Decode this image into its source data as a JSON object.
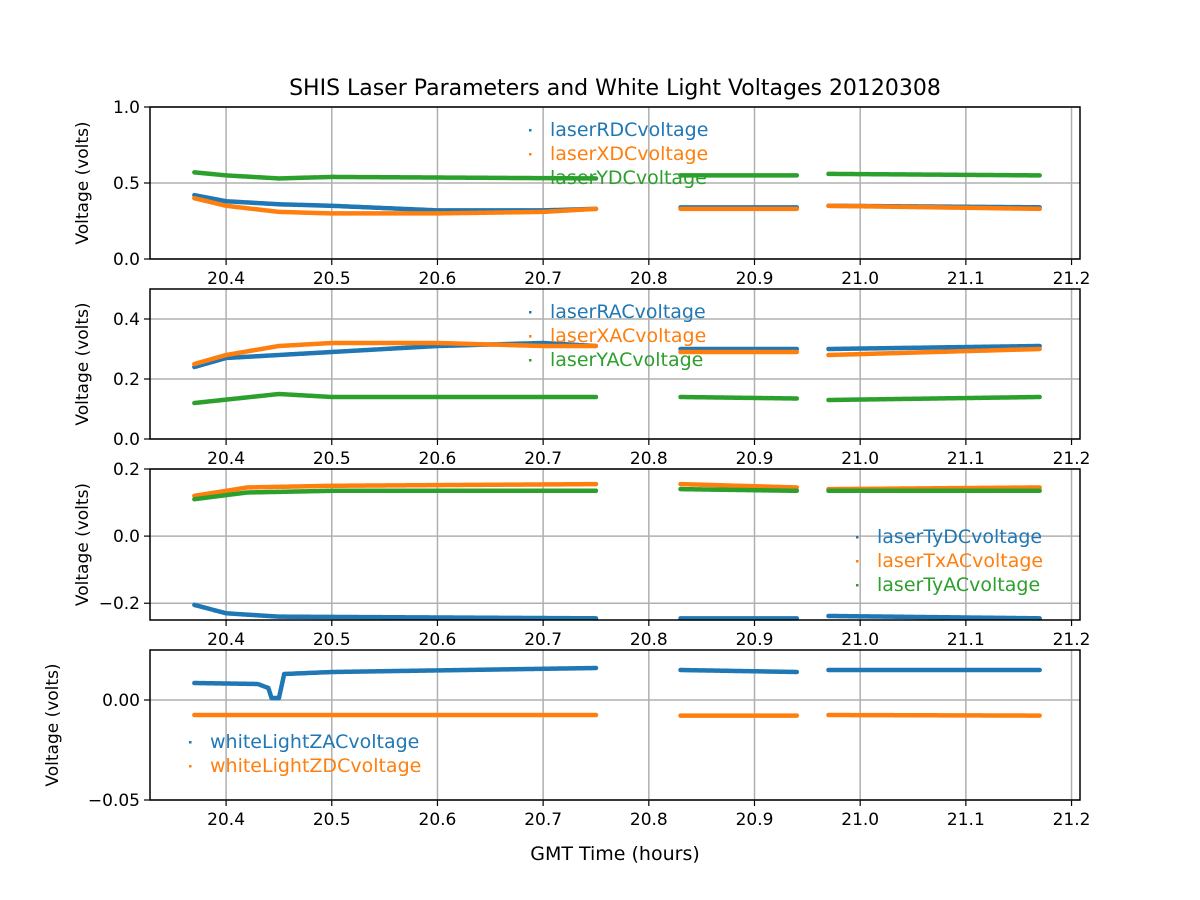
{
  "chart_data": {
    "type": "scatter",
    "title": "SHIS Laser Parameters and White Light Voltages 20120308",
    "xlabel": "GMT Time (hours)",
    "xlim": [
      20.328,
      21.208
    ],
    "xticks": [
      20.4,
      20.5,
      20.6,
      20.7,
      20.8,
      20.9,
      21.0,
      21.1,
      21.2
    ],
    "xtick_labels": [
      "20.4",
      "20.5",
      "20.6",
      "20.7",
      "20.8",
      "20.9",
      "21.0",
      "21.1",
      "21.2"
    ],
    "grid": true,
    "panels": [
      {
        "ylabel": "Voltage (volts)",
        "ylim": [
          0,
          1.0
        ],
        "yticks": [
          0,
          0.5,
          1.0
        ],
        "ytick_labels": [
          "0.0",
          "0.5",
          "1.0"
        ],
        "legend": "upper center",
        "series": [
          {
            "name": "laserRDCvoltage",
            "color": "#1f77b4",
            "segments": [
              [
                [
                  20.37,
                  0.42
                ],
                [
                  20.4,
                  0.38
                ],
                [
                  20.45,
                  0.36
                ],
                [
                  20.5,
                  0.35
                ],
                [
                  20.6,
                  0.32
                ],
                [
                  20.7,
                  0.32
                ],
                [
                  20.75,
                  0.33
                ]
              ],
              [
                [
                  20.83,
                  0.34
                ],
                [
                  20.94,
                  0.34
                ]
              ],
              [
                [
                  20.97,
                  0.35
                ],
                [
                  21.17,
                  0.34
                ]
              ]
            ]
          },
          {
            "name": "laserXDCvoltage",
            "color": "#ff7f0e",
            "segments": [
              [
                [
                  20.37,
                  0.4
                ],
                [
                  20.4,
                  0.35
                ],
                [
                  20.45,
                  0.31
                ],
                [
                  20.5,
                  0.3
                ],
                [
                  20.6,
                  0.3
                ],
                [
                  20.7,
                  0.31
                ],
                [
                  20.75,
                  0.33
                ]
              ],
              [
                [
                  20.83,
                  0.33
                ],
                [
                  20.94,
                  0.33
                ]
              ],
              [
                [
                  20.97,
                  0.35
                ],
                [
                  21.17,
                  0.33
                ]
              ]
            ]
          },
          {
            "name": "laserYDCvoltage",
            "color": "#2ca02c",
            "segments": [
              [
                [
                  20.37,
                  0.57
                ],
                [
                  20.4,
                  0.55
                ],
                [
                  20.45,
                  0.53
                ],
                [
                  20.5,
                  0.54
                ],
                [
                  20.75,
                  0.53
                ]
              ],
              [
                [
                  20.83,
                  0.55
                ],
                [
                  20.94,
                  0.55
                ]
              ],
              [
                [
                  20.97,
                  0.56
                ],
                [
                  21.17,
                  0.55
                ]
              ]
            ]
          }
        ]
      },
      {
        "ylabel": "Voltage (volts)",
        "ylim": [
          0,
          0.5
        ],
        "yticks": [
          0,
          0.2,
          0.4
        ],
        "ytick_labels": [
          "0.0",
          "0.2",
          "0.4"
        ],
        "legend": "upper center",
        "series": [
          {
            "name": "laserRACvoltage",
            "color": "#1f77b4",
            "segments": [
              [
                [
                  20.37,
                  0.24
                ],
                [
                  20.4,
                  0.27
                ],
                [
                  20.5,
                  0.29
                ],
                [
                  20.6,
                  0.31
                ],
                [
                  20.7,
                  0.32
                ],
                [
                  20.75,
                  0.31
                ]
              ],
              [
                [
                  20.83,
                  0.3
                ],
                [
                  20.94,
                  0.3
                ]
              ],
              [
                [
                  20.97,
                  0.3
                ],
                [
                  21.17,
                  0.31
                ]
              ]
            ]
          },
          {
            "name": "laserXACvoltage",
            "color": "#ff7f0e",
            "segments": [
              [
                [
                  20.37,
                  0.25
                ],
                [
                  20.4,
                  0.28
                ],
                [
                  20.45,
                  0.31
                ],
                [
                  20.5,
                  0.32
                ],
                [
                  20.6,
                  0.32
                ],
                [
                  20.7,
                  0.31
                ],
                [
                  20.75,
                  0.31
                ]
              ],
              [
                [
                  20.83,
                  0.29
                ],
                [
                  20.94,
                  0.29
                ]
              ],
              [
                [
                  20.97,
                  0.28
                ],
                [
                  21.17,
                  0.3
                ]
              ]
            ]
          },
          {
            "name": "laserYACvoltage",
            "color": "#2ca02c",
            "segments": [
              [
                [
                  20.37,
                  0.12
                ],
                [
                  20.45,
                  0.15
                ],
                [
                  20.5,
                  0.14
                ],
                [
                  20.75,
                  0.14
                ]
              ],
              [
                [
                  20.83,
                  0.14
                ],
                [
                  20.94,
                  0.135
                ]
              ],
              [
                [
                  20.97,
                  0.13
                ],
                [
                  21.17,
                  0.14
                ]
              ]
            ]
          }
        ]
      },
      {
        "ylabel": "Voltage (volts)",
        "ylim": [
          -0.25,
          0.2
        ],
        "yticks": [
          -0.2,
          0,
          0.2
        ],
        "ytick_labels": [
          "−0.2",
          "0.0",
          "0.2"
        ],
        "legend": "center right",
        "series": [
          {
            "name": "laserTyDCvoltage",
            "color": "#1f77b4",
            "segments": [
              [
                [
                  20.37,
                  -0.205
                ],
                [
                  20.4,
                  -0.23
                ],
                [
                  20.45,
                  -0.24
                ],
                [
                  20.75,
                  -0.245
                ]
              ],
              [
                [
                  20.83,
                  -0.245
                ],
                [
                  20.94,
                  -0.245
                ]
              ],
              [
                [
                  20.97,
                  -0.238
                ],
                [
                  21.17,
                  -0.245
                ]
              ]
            ]
          },
          {
            "name": "laserTxACvoltage",
            "color": "#ff7f0e",
            "segments": [
              [
                [
                  20.37,
                  0.12
                ],
                [
                  20.42,
                  0.145
                ],
                [
                  20.5,
                  0.15
                ],
                [
                  20.75,
                  0.155
                ]
              ],
              [
                [
                  20.83,
                  0.155
                ],
                [
                  20.94,
                  0.145
                ]
              ],
              [
                [
                  20.97,
                  0.14
                ],
                [
                  21.17,
                  0.145
                ]
              ]
            ]
          },
          {
            "name": "laserTyACvoltage",
            "color": "#2ca02c",
            "segments": [
              [
                [
                  20.37,
                  0.11
                ],
                [
                  20.42,
                  0.13
                ],
                [
                  20.5,
                  0.135
                ],
                [
                  20.75,
                  0.135
                ]
              ],
              [
                [
                  20.83,
                  0.14
                ],
                [
                  20.94,
                  0.135
                ]
              ],
              [
                [
                  20.97,
                  0.135
                ],
                [
                  21.17,
                  0.135
                ]
              ]
            ]
          }
        ]
      },
      {
        "ylabel": "Voltage (volts)",
        "ylim": [
          -0.05,
          0.025
        ],
        "yticks": [
          -0.05,
          0.0
        ],
        "ytick_labels": [
          "−0.05",
          "0.00"
        ],
        "legend": "lower left",
        "series": [
          {
            "name": "whiteLightZACvoltage",
            "color": "#1f77b4",
            "segments": [
              [
                [
                  20.37,
                  0.0085
                ],
                [
                  20.43,
                  0.008
                ],
                [
                  20.44,
                  0.006
                ],
                [
                  20.443,
                  0.001
                ],
                [
                  20.45,
                  0.001
                ],
                [
                  20.455,
                  0.013
                ],
                [
                  20.5,
                  0.014
                ],
                [
                  20.75,
                  0.016
                ]
              ],
              [
                [
                  20.83,
                  0.015
                ],
                [
                  20.94,
                  0.014
                ]
              ],
              [
                [
                  20.97,
                  0.015
                ],
                [
                  21.17,
                  0.015
                ]
              ]
            ]
          },
          {
            "name": "whiteLightZDCvoltage",
            "color": "#ff7f0e",
            "segments": [
              [
                [
                  20.37,
                  -0.0075
                ],
                [
                  20.75,
                  -0.0075
                ]
              ],
              [
                [
                  20.83,
                  -0.0078
                ],
                [
                  20.94,
                  -0.0078
                ]
              ],
              [
                [
                  20.97,
                  -0.0075
                ],
                [
                  21.17,
                  -0.0078
                ]
              ]
            ]
          }
        ]
      }
    ]
  }
}
